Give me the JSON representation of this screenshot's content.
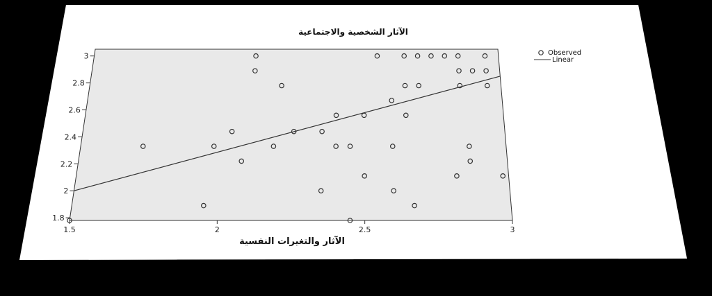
{
  "chart_data": {
    "type": "scatter",
    "title": "الآثار الشخصية والاجتماعية",
    "xlabel": "الآثار والتغيرات النفسية",
    "ylabel": "",
    "xlim": [
      1.5,
      3.0
    ],
    "ylim": [
      1.78,
      3.05
    ],
    "x_ticks": [
      "1.5",
      "2",
      "2.5",
      "3"
    ],
    "y_ticks": [
      "1.8",
      "2",
      "2.2",
      "2.4",
      "2.6",
      "2.8",
      "3"
    ],
    "legend": {
      "position": "right",
      "entries": [
        "Observed",
        "Linear"
      ]
    },
    "grid": false,
    "series": [
      {
        "name": "Observed",
        "kind": "points",
        "points": [
          [
            1.5,
            1.78
          ],
          [
            1.72,
            2.33
          ],
          [
            1.95,
            1.89
          ],
          [
            1.97,
            2.33
          ],
          [
            2.03,
            2.44
          ],
          [
            2.07,
            2.22
          ],
          [
            2.1,
            3.0
          ],
          [
            2.1,
            2.89
          ],
          [
            2.18,
            2.33
          ],
          [
            2.2,
            2.78
          ],
          [
            2.25,
            2.44
          ],
          [
            2.35,
            2.0
          ],
          [
            2.35,
            2.44
          ],
          [
            2.4,
            2.33
          ],
          [
            2.4,
            2.56
          ],
          [
            2.45,
            2.33
          ],
          [
            2.45,
            1.78
          ],
          [
            2.5,
            2.56
          ],
          [
            2.5,
            2.11
          ],
          [
            2.55,
            3.0
          ],
          [
            2.6,
            2.67
          ],
          [
            2.6,
            2.33
          ],
          [
            2.6,
            2.0
          ],
          [
            2.65,
            3.0
          ],
          [
            2.65,
            2.78
          ],
          [
            2.65,
            2.56
          ],
          [
            2.67,
            1.89
          ],
          [
            2.7,
            3.0
          ],
          [
            2.7,
            2.78
          ],
          [
            2.75,
            3.0
          ],
          [
            2.8,
            3.0
          ],
          [
            2.82,
            2.11
          ],
          [
            2.85,
            3.0
          ],
          [
            2.85,
            2.89
          ],
          [
            2.85,
            2.78
          ],
          [
            2.87,
            2.33
          ],
          [
            2.87,
            2.22
          ],
          [
            2.9,
            2.89
          ],
          [
            2.95,
            3.0
          ],
          [
            2.95,
            2.89
          ],
          [
            2.95,
            2.78
          ],
          [
            2.98,
            2.11
          ]
        ]
      },
      {
        "name": "Linear",
        "kind": "line",
        "points": [
          [
            1.5,
            2.0
          ],
          [
            3.0,
            2.85
          ]
        ]
      }
    ],
    "colors": {
      "marker": "#333333",
      "line": "#333333",
      "plot_bg": "#e9e9e9",
      "card_bg": "#ffffff"
    }
  }
}
